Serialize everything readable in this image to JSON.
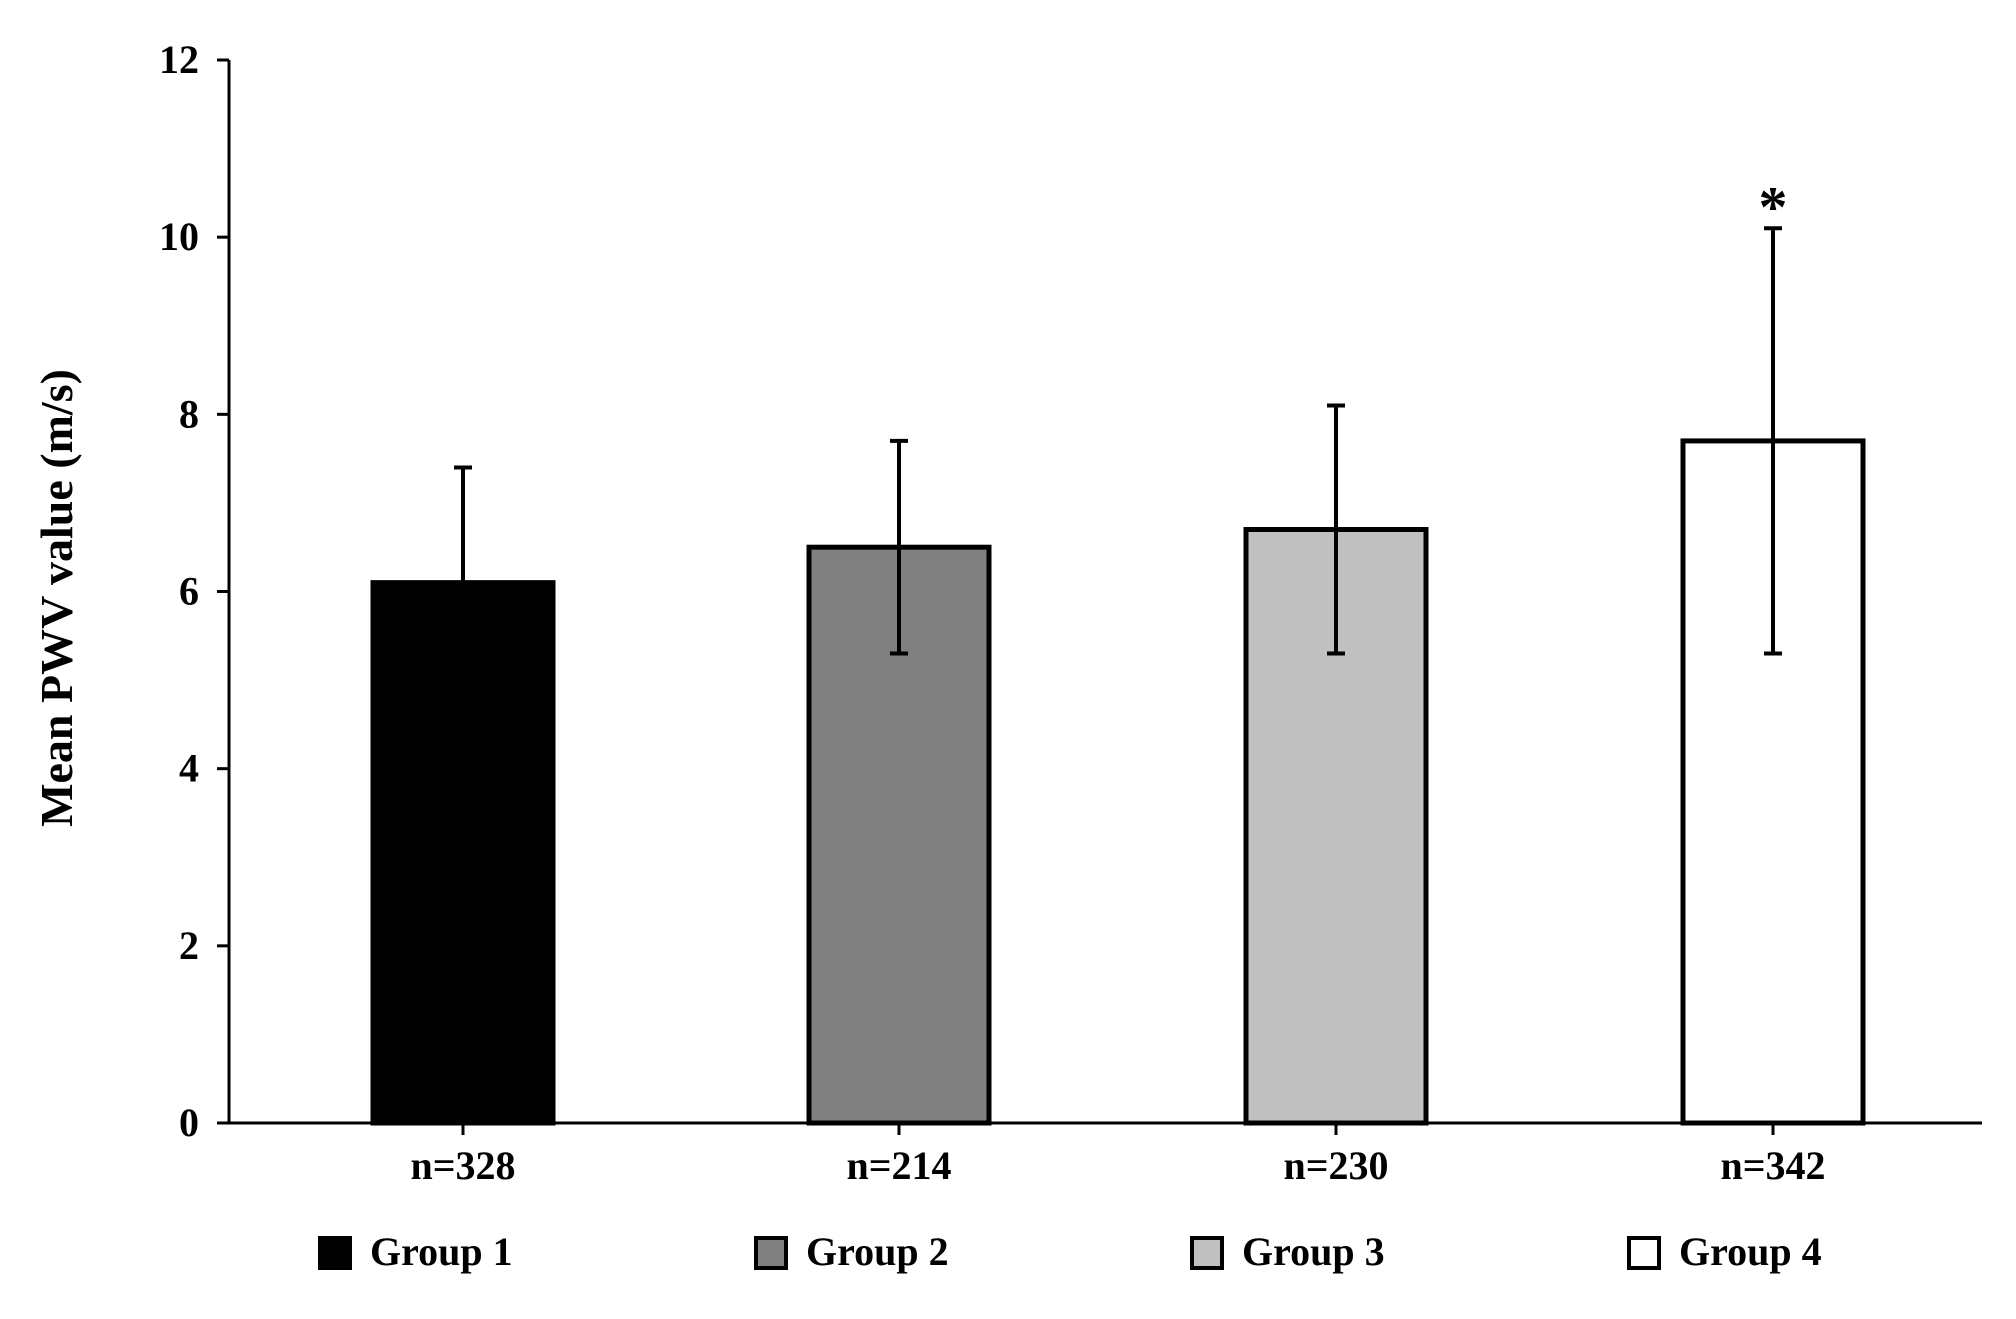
{
  "chart_data": {
    "type": "bar",
    "title": "",
    "xlabel": "",
    "ylabel": "Mean PWV value (m/s)",
    "ylim": [
      0,
      12
    ],
    "yticks": [
      0,
      2,
      4,
      6,
      8,
      10,
      12
    ],
    "grid": false,
    "legend_position": "bottom",
    "categories": [
      "n=328",
      "n=214",
      "n=230",
      "n=342"
    ],
    "series": [
      {
        "name": "Group 1",
        "value": 6.1,
        "error": 1.3,
        "color": "#000000"
      },
      {
        "name": "Group 2",
        "value": 6.5,
        "error": 1.2,
        "color": "#808080"
      },
      {
        "name": "Group 3",
        "value": 6.7,
        "error": 1.4,
        "color": "#c0c0c0"
      },
      {
        "name": "Group 4",
        "value": 7.7,
        "error": 2.4,
        "color": "#ffffff"
      }
    ],
    "annotations": [
      {
        "category_index": 3,
        "text": "*"
      }
    ]
  }
}
